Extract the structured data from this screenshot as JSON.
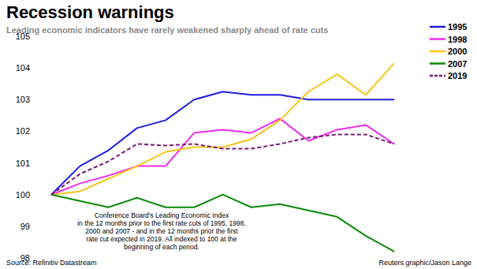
{
  "chart_data": {
    "type": "line",
    "title": "Recession warnings",
    "subtitle": "Leading economic indicators have rarely weakened sharply ahead of rate cuts",
    "annotations": [
      "Conference Board's Leading Economic Index",
      "in the 12 months prior to the first rate cuts of 1995, 1998,",
      "2000 and 2007 - and in the 12 months prior the first",
      "rate cut expected in 2019. All indexed to 100 at the",
      "beginning of each period."
    ],
    "source": "Source: Refinitiv Datastream",
    "credit": "Reuters graphic/Jason Lange",
    "x": [
      0,
      1,
      2,
      3,
      4,
      5,
      6,
      7,
      8,
      9,
      10,
      11,
      12
    ],
    "xlim": [
      0,
      12
    ],
    "ylim": [
      98,
      105
    ],
    "yticks": [
      98,
      99,
      100,
      101,
      102,
      103,
      104,
      105
    ],
    "tick_labels": "y",
    "grid": false,
    "legend": "right",
    "series": [
      {
        "name": "1995",
        "color": "#1f1fe0",
        "line_style": "solid",
        "values": [
          100,
          100.9,
          101.4,
          102.1,
          102.35,
          103.0,
          103.25,
          103.15,
          103.15,
          103.0,
          103.0,
          103.0,
          103.0
        ]
      },
      {
        "name": "1998",
        "color": "#ee2cee",
        "line_style": "solid",
        "values": [
          100,
          100.35,
          100.6,
          100.9,
          100.9,
          101.95,
          102.05,
          101.95,
          102.4,
          101.7,
          102.05,
          102.2,
          101.6
        ]
      },
      {
        "name": "2000",
        "color": "#f5c518",
        "line_style": "solid",
        "values": [
          100,
          100.1,
          100.5,
          100.9,
          101.35,
          101.5,
          101.5,
          101.75,
          102.35,
          103.25,
          103.8,
          103.15,
          104.15
        ]
      },
      {
        "name": "2007",
        "color": "#0a8a0a",
        "line_style": "solid",
        "values": [
          100,
          99.8,
          99.6,
          99.9,
          99.6,
          99.6,
          100.0,
          99.6,
          99.7,
          99.5,
          99.3,
          98.7,
          98.2
        ]
      },
      {
        "name": "2019",
        "color": "#7a1a7a",
        "line_style": "dashed",
        "values": [
          100,
          100.65,
          101.05,
          101.6,
          101.55,
          101.6,
          101.45,
          101.45,
          101.6,
          101.8,
          101.9,
          101.9,
          101.6
        ]
      }
    ]
  }
}
